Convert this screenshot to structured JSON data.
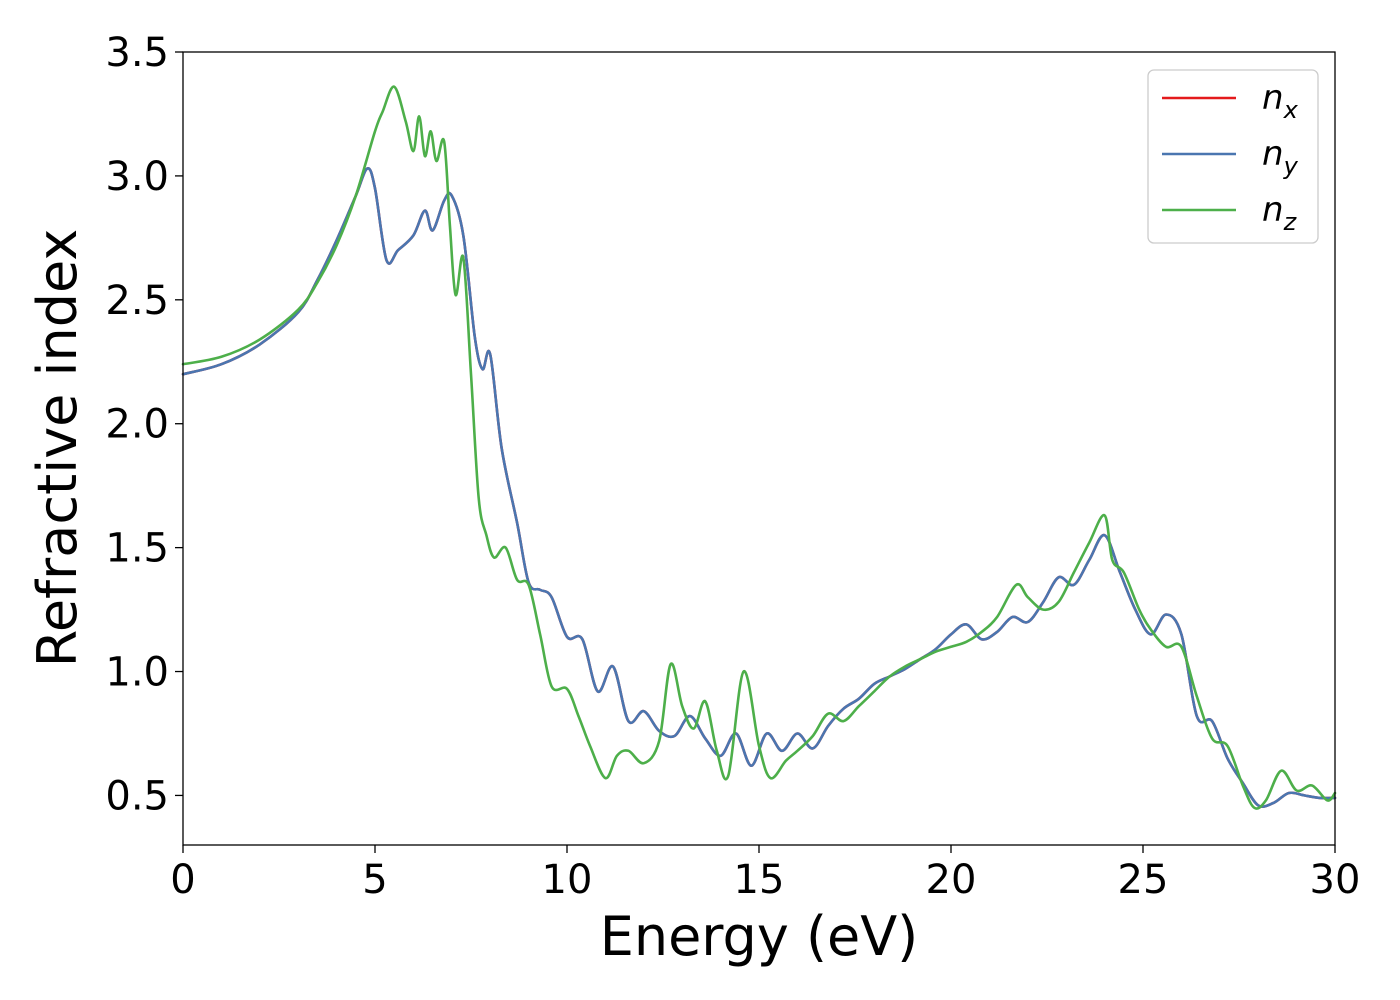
{
  "chart_data": {
    "type": "line",
    "title": "",
    "xlabel": "Energy (eV)",
    "ylabel": "Refractive index",
    "xlim": [
      0,
      30
    ],
    "ylim": [
      0.3,
      3.5
    ],
    "xticks": [
      0,
      5,
      10,
      15,
      20,
      25,
      30
    ],
    "xtick_labels": [
      "0",
      "5",
      "10",
      "15",
      "20",
      "25",
      "30"
    ],
    "yticks": [
      0.5,
      1.0,
      1.5,
      2.0,
      2.5,
      3.0,
      3.5
    ],
    "ytick_labels": [
      "0.5",
      "1.0",
      "1.5",
      "2.0",
      "2.5",
      "3.0",
      "3.5"
    ],
    "grid": false,
    "legend_position": "top-right",
    "series": [
      {
        "name": "n",
        "subscript": "x",
        "color": "#e41a1c",
        "x": [
          0,
          1,
          2,
          3,
          3.5,
          4,
          4.5,
          4.8,
          5.0,
          5.3,
          5.6,
          6.0,
          6.3,
          6.5,
          6.8,
          7.0,
          7.3,
          7.6,
          7.8,
          8.0,
          8.3,
          8.7,
          9.0,
          9.3,
          9.6,
          10.0,
          10.4,
          10.8,
          11.2,
          11.6,
          12.0,
          12.4,
          12.8,
          13.2,
          13.6,
          14.0,
          14.4,
          14.8,
          15.2,
          15.6,
          16.0,
          16.4,
          16.8,
          17.2,
          17.6,
          18.0,
          18.4,
          18.8,
          19.2,
          19.6,
          20.0,
          20.4,
          20.8,
          21.2,
          21.6,
          22.0,
          22.4,
          22.8,
          23.2,
          23.6,
          24.0,
          24.4,
          24.8,
          25.2,
          25.6,
          26.0,
          26.4,
          26.8,
          27.2,
          27.6,
          28.0,
          28.4,
          28.8,
          29.2,
          29.6,
          30.0
        ],
        "y": [
          2.2,
          2.24,
          2.32,
          2.45,
          2.58,
          2.74,
          2.92,
          3.03,
          2.95,
          2.66,
          2.7,
          2.76,
          2.86,
          2.78,
          2.9,
          2.92,
          2.76,
          2.35,
          2.22,
          2.28,
          1.9,
          1.6,
          1.36,
          1.33,
          1.3,
          1.14,
          1.13,
          0.92,
          1.02,
          0.8,
          0.84,
          0.76,
          0.74,
          0.82,
          0.73,
          0.66,
          0.75,
          0.62,
          0.75,
          0.68,
          0.75,
          0.69,
          0.78,
          0.85,
          0.89,
          0.95,
          0.98,
          1.01,
          1.05,
          1.09,
          1.15,
          1.19,
          1.13,
          1.16,
          1.22,
          1.2,
          1.28,
          1.38,
          1.35,
          1.45,
          1.55,
          1.4,
          1.25,
          1.15,
          1.23,
          1.15,
          0.82,
          0.8,
          0.65,
          0.55,
          0.46,
          0.47,
          0.51,
          0.5,
          0.49,
          0.49
        ]
      },
      {
        "name": "n",
        "subscript": "y",
        "color": "#4a76b0",
        "x": [
          0,
          1,
          2,
          3,
          3.5,
          4,
          4.5,
          4.8,
          5.0,
          5.3,
          5.6,
          6.0,
          6.3,
          6.5,
          6.8,
          7.0,
          7.3,
          7.6,
          7.8,
          8.0,
          8.3,
          8.7,
          9.0,
          9.3,
          9.6,
          10.0,
          10.4,
          10.8,
          11.2,
          11.6,
          12.0,
          12.4,
          12.8,
          13.2,
          13.6,
          14.0,
          14.4,
          14.8,
          15.2,
          15.6,
          16.0,
          16.4,
          16.8,
          17.2,
          17.6,
          18.0,
          18.4,
          18.8,
          19.2,
          19.6,
          20.0,
          20.4,
          20.8,
          21.2,
          21.6,
          22.0,
          22.4,
          22.8,
          23.2,
          23.6,
          24.0,
          24.4,
          24.8,
          25.2,
          25.6,
          26.0,
          26.4,
          26.8,
          27.2,
          27.6,
          28.0,
          28.4,
          28.8,
          29.2,
          29.6,
          30.0
        ],
        "y": [
          2.2,
          2.24,
          2.32,
          2.45,
          2.58,
          2.74,
          2.92,
          3.03,
          2.95,
          2.66,
          2.7,
          2.76,
          2.86,
          2.78,
          2.9,
          2.92,
          2.76,
          2.35,
          2.22,
          2.28,
          1.9,
          1.6,
          1.36,
          1.33,
          1.3,
          1.14,
          1.13,
          0.92,
          1.02,
          0.8,
          0.84,
          0.76,
          0.74,
          0.82,
          0.73,
          0.66,
          0.75,
          0.62,
          0.75,
          0.68,
          0.75,
          0.69,
          0.78,
          0.85,
          0.89,
          0.95,
          0.98,
          1.01,
          1.05,
          1.09,
          1.15,
          1.19,
          1.13,
          1.16,
          1.22,
          1.2,
          1.28,
          1.38,
          1.35,
          1.45,
          1.55,
          1.4,
          1.25,
          1.15,
          1.23,
          1.15,
          0.82,
          0.8,
          0.65,
          0.55,
          0.46,
          0.47,
          0.51,
          0.5,
          0.49,
          0.49
        ]
      },
      {
        "name": "n",
        "subscript": "z",
        "color": "#4daf4a",
        "x": [
          0,
          1,
          2,
          3,
          3.5,
          4,
          4.5,
          5.0,
          5.2,
          5.5,
          5.8,
          6.0,
          6.15,
          6.3,
          6.45,
          6.6,
          6.8,
          6.95,
          7.1,
          7.3,
          7.5,
          7.7,
          7.9,
          8.1,
          8.4,
          8.7,
          9.0,
          9.3,
          9.6,
          10.0,
          10.3,
          10.6,
          11.0,
          11.3,
          11.6,
          12.0,
          12.4,
          12.7,
          13.0,
          13.3,
          13.6,
          13.9,
          14.2,
          14.6,
          15.0,
          15.3,
          15.7,
          16.0,
          16.4,
          16.8,
          17.2,
          17.6,
          18.0,
          18.4,
          18.8,
          19.2,
          19.6,
          20.0,
          20.4,
          20.8,
          21.2,
          21.7,
          22.0,
          22.4,
          22.8,
          23.2,
          23.6,
          24.0,
          24.2,
          24.5,
          24.9,
          25.2,
          25.6,
          26.0,
          26.4,
          26.8,
          27.2,
          27.6,
          27.9,
          28.2,
          28.6,
          29.0,
          29.4,
          29.8,
          30.0
        ],
        "y": [
          2.24,
          2.27,
          2.34,
          2.46,
          2.57,
          2.72,
          2.92,
          3.18,
          3.26,
          3.36,
          3.22,
          3.1,
          3.24,
          3.08,
          3.18,
          3.06,
          3.14,
          2.8,
          2.52,
          2.67,
          2.2,
          1.7,
          1.55,
          1.46,
          1.5,
          1.37,
          1.35,
          1.15,
          0.94,
          0.93,
          0.82,
          0.7,
          0.57,
          0.66,
          0.68,
          0.63,
          0.72,
          1.03,
          0.86,
          0.77,
          0.88,
          0.68,
          0.58,
          1.0,
          0.7,
          0.57,
          0.64,
          0.68,
          0.74,
          0.83,
          0.8,
          0.86,
          0.92,
          0.98,
          1.02,
          1.05,
          1.08,
          1.1,
          1.12,
          1.16,
          1.22,
          1.35,
          1.3,
          1.25,
          1.28,
          1.4,
          1.52,
          1.63,
          1.45,
          1.4,
          1.25,
          1.17,
          1.1,
          1.1,
          0.9,
          0.73,
          0.7,
          0.54,
          0.45,
          0.48,
          0.6,
          0.52,
          0.54,
          0.48,
          0.51
        ]
      }
    ]
  }
}
